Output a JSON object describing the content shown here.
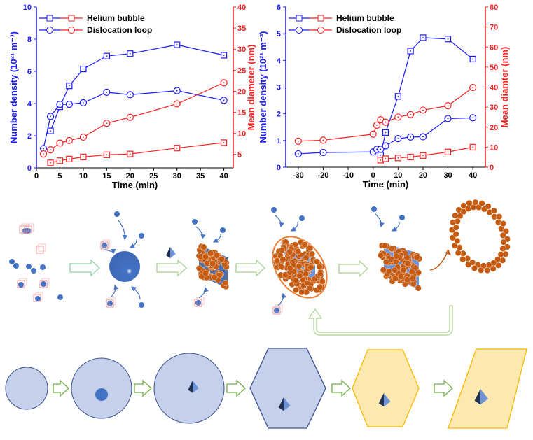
{
  "colors": {
    "density": "#1a1aff",
    "diameter": "#ff2020",
    "sphere": "#4472c4",
    "orange": "#c55a11",
    "arrow": "#a9d18e",
    "hexBlue": "#c5d0ea",
    "hexYellow": "#fde9b0",
    "yellowStroke": "#f5b800"
  },
  "chart_data": [
    {
      "type": "line",
      "xlabel": "Time (min)",
      "ylabel": "Number density (10²¹ m⁻³)",
      "y2label": "Mean diameter (nm)",
      "xlim": [
        0,
        42
      ],
      "ylim": [
        0,
        10
      ],
      "y2lim": [
        1.8,
        40
      ],
      "xticks": [
        0,
        5,
        10,
        15,
        20,
        25,
        30,
        35,
        40
      ],
      "yticks": [
        0,
        2,
        4,
        6,
        8,
        10
      ],
      "y2ticks": [
        5,
        10,
        15,
        20,
        25,
        30,
        35,
        40
      ],
      "legend": [
        "Helium bubble",
        "Dislocation loop"
      ],
      "legend_placement": "top-left",
      "series": [
        {
          "name": "Helium bubble density",
          "axis": "left",
          "marker": "square",
          "color": "#1a1aff",
          "x": [
            3,
            5,
            7,
            10,
            15,
            20,
            30,
            40
          ],
          "y": [
            2.3,
            3.8,
            5.1,
            6.15,
            6.95,
            7.1,
            7.65,
            7.0
          ]
        },
        {
          "name": "Dislocation loop density",
          "axis": "left",
          "marker": "circle",
          "color": "#1a1aff",
          "x": [
            1.5,
            3,
            5,
            7,
            10,
            15,
            20,
            30,
            40
          ],
          "y": [
            1.2,
            3.2,
            3.95,
            3.95,
            4.05,
            4.7,
            4.55,
            4.8,
            4.2
          ]
        },
        {
          "name": "Helium bubble diameter",
          "axis": "right",
          "marker": "square",
          "color": "#ff2020",
          "x": [
            3,
            5,
            7,
            10,
            15,
            20,
            30,
            40
          ],
          "y": [
            3.0,
            3.5,
            3.9,
            4.4,
            4.9,
            5.1,
            6.5,
            7.8
          ]
        },
        {
          "name": "Dislocation loop diameter",
          "axis": "right",
          "marker": "circle",
          "color": "#ff2020",
          "x": [
            1.5,
            3,
            5,
            7,
            10,
            15,
            20,
            30,
            40
          ],
          "y": [
            5.1,
            6.1,
            7.7,
            8.3,
            9.1,
            12.4,
            13.8,
            17.0,
            22.0
          ]
        }
      ]
    },
    {
      "type": "line",
      "xlabel": "Time (min)",
      "ylabel": "Number density (10²¹ m⁻³)",
      "y2label": "Mean diamter (nm)",
      "xlim": [
        -35,
        45
      ],
      "ylim": [
        0,
        6
      ],
      "y2lim": [
        0,
        80
      ],
      "xticks": [
        -30,
        -20,
        -10,
        0,
        10,
        20,
        30,
        40
      ],
      "yticks": [
        0,
        1,
        2,
        3,
        4,
        5,
        6
      ],
      "y2ticks": [
        0,
        10,
        20,
        30,
        40,
        50,
        60,
        70,
        80
      ],
      "legend": [
        "Helium bubble",
        "Dislocation loop"
      ],
      "legend_placement": "top-left",
      "series": [
        {
          "name": "Helium bubble density",
          "axis": "left",
          "marker": "square",
          "color": "#1a1aff",
          "x": [
            3,
            5,
            10,
            15,
            20,
            30,
            40
          ],
          "y": [
            0.45,
            1.3,
            2.65,
            4.35,
            4.85,
            4.8,
            4.05
          ]
        },
        {
          "name": "Dislocation loop density",
          "axis": "left",
          "marker": "circle",
          "color": "#1a1aff",
          "x": [
            -30,
            -20,
            0,
            1.5,
            3,
            5,
            10,
            15,
            20,
            30,
            40
          ],
          "y": [
            0.5,
            0.55,
            0.57,
            0.67,
            0.67,
            0.8,
            1.07,
            1.13,
            1.14,
            1.82,
            1.85
          ]
        },
        {
          "name": "Helium bubble diameter",
          "axis": "right",
          "marker": "square",
          "color": "#ff2020",
          "x": [
            3,
            5,
            10,
            15,
            20,
            30,
            40
          ],
          "y": [
            3.5,
            4.2,
            4.6,
            5.1,
            5.8,
            7.6,
            10.0
          ]
        },
        {
          "name": "Dislocation loop diameter",
          "axis": "right",
          "marker": "circle",
          "color": "#ff2020",
          "x": [
            -30,
            -20,
            0,
            1.5,
            3,
            5,
            10,
            15,
            20,
            30,
            40
          ],
          "y": [
            13,
            13.5,
            16.5,
            21,
            23.7,
            22.5,
            25,
            26.3,
            28.5,
            30.7,
            39.8
          ]
        }
      ]
    }
  ]
}
